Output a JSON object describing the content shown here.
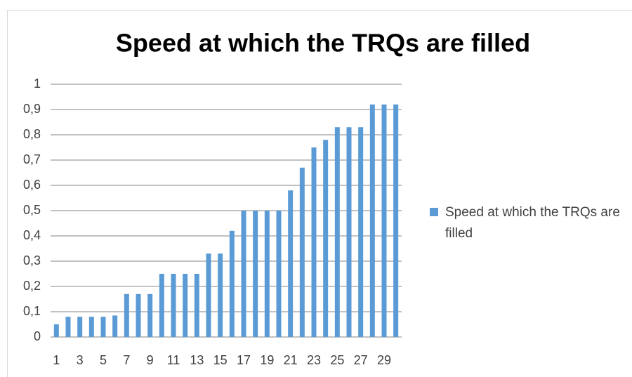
{
  "chart_data": {
    "type": "bar",
    "title": "Speed at which the TRQs are filled",
    "categories": [
      "1",
      null,
      "3",
      null,
      "5",
      null,
      "7",
      null,
      "9",
      null,
      "11",
      null,
      "13",
      null,
      "15",
      null,
      "17",
      null,
      "19",
      null,
      "21",
      null,
      "23",
      null,
      "25",
      null,
      "27",
      null,
      "29",
      null
    ],
    "series": [
      {
        "name": "Speed at which the TRQs are filled",
        "color": "#5b9bd5",
        "values": [
          0.05,
          0.08,
          0.08,
          0.08,
          0.08,
          0.085,
          0.17,
          0.17,
          0.17,
          0.25,
          0.25,
          0.25,
          0.25,
          0.33,
          0.33,
          0.42,
          0.5,
          0.5,
          0.5,
          0.5,
          0.58,
          0.67,
          0.75,
          0.78,
          0.83,
          0.83,
          0.83,
          0.92,
          0.92,
          0.92
        ]
      }
    ],
    "ylim": [
      0,
      1
    ],
    "yticks": [
      0,
      {
        "value": 0.1,
        "label": "0,1"
      },
      {
        "value": 0.2,
        "label": "0,2"
      },
      {
        "value": 0.3,
        "label": "0,3"
      },
      {
        "value": 0.4,
        "label": "0,4"
      },
      {
        "value": 0.5,
        "label": "0,5"
      },
      {
        "value": 0.6,
        "label": "0,6"
      },
      {
        "value": 0.7,
        "label": "0,7"
      },
      {
        "value": 0.8,
        "label": "0,8"
      },
      {
        "value": 0.9,
        "label": "0,9"
      },
      1
    ],
    "grid": true,
    "legend": "right"
  }
}
